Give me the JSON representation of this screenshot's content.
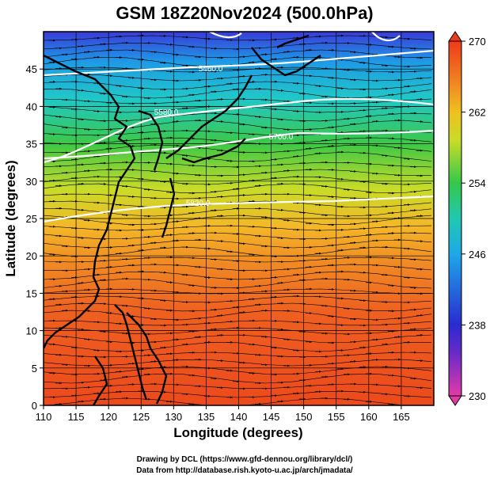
{
  "title": "GSM 18Z20Nov2024 (500.0hPa)",
  "x_axis": {
    "label": "Longitude (degrees)",
    "ticks": [
      "110",
      "115",
      "120",
      "125",
      "130",
      "135",
      "140",
      "145",
      "150",
      "155",
      "160",
      "165"
    ],
    "range": [
      110,
      170
    ]
  },
  "y_axis": {
    "label": "Latitude (degrees)",
    "ticks": [
      "0",
      "5",
      "10",
      "15",
      "20",
      "25",
      "30",
      "35",
      "40",
      "45"
    ],
    "range": [
      0,
      50
    ]
  },
  "colorbar": {
    "ticks": [
      "230",
      "238",
      "246",
      "254",
      "262",
      "270"
    ],
    "range": [
      230,
      270
    ],
    "colors": [
      "#e23aa8",
      "#2a2ad0",
      "#1ea8e8",
      "#34c84a",
      "#f0d020",
      "#ee4a1a"
    ]
  },
  "contours": [
    {
      "label": "5460.0"
    },
    {
      "label": "5580.0"
    },
    {
      "label": "5700.0"
    },
    {
      "label": "5820.0"
    }
  ],
  "credits": {
    "line1": "Drawing by DCL (https://www.gfd-dennou.org/library/dcl/)",
    "line2": "Data from http://database.rish.kyoto-u.ac.jp/arch/jmadata/"
  },
  "colors": {
    "coast": "#000000",
    "contour": "#ffffff",
    "stream": "#000000"
  }
}
